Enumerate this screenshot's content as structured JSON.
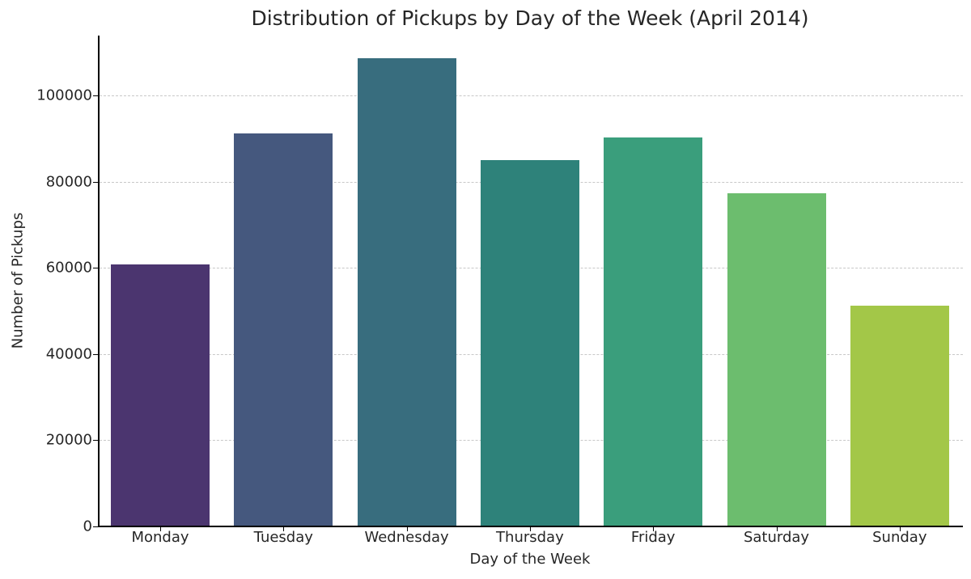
{
  "chart_data": {
    "type": "bar",
    "title": "Distribution of Pickups by Day of the Week (April 2014)",
    "xlabel": "Day of the Week",
    "ylabel": "Number of Pickups",
    "categories": [
      "Monday",
      "Tuesday",
      "Wednesday",
      "Thursday",
      "Friday",
      "Saturday",
      "Sunday"
    ],
    "values": [
      60861,
      91185,
      108631,
      85067,
      90303,
      77218,
      51251
    ],
    "colors": [
      "#4b356f",
      "#45587e",
      "#386d7e",
      "#2e827a",
      "#3a9e7c",
      "#6cbd6e",
      "#a3c748"
    ],
    "ylim": [
      0,
      114000
    ],
    "yticks": [
      0,
      20000,
      40000,
      60000,
      80000,
      100000
    ],
    "ytick_labels": [
      "0",
      "20000",
      "40000",
      "60000",
      "80000",
      "100000"
    ],
    "grid": "horizontal dashed",
    "legend": "none"
  }
}
